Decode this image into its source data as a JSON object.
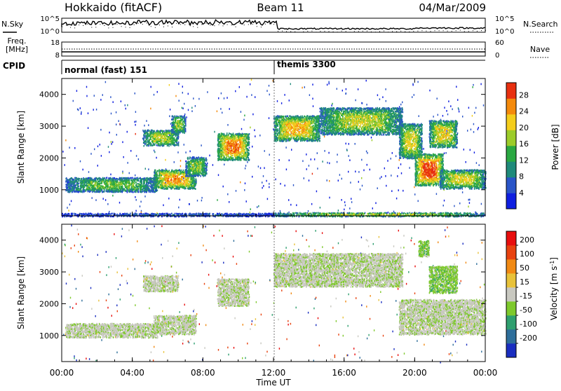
{
  "header": {
    "title": "Hokkaido (fitACF)",
    "beam": "Beam 11",
    "date": "04/Mar/2009"
  },
  "labels": {
    "nsky": "N.Sky",
    "nsearch": "N.Search",
    "freq_line1": "Freq.",
    "freq_line2": "[MHz]",
    "nave": "Nave",
    "cpid": "CPID",
    "slant_range": "Slant Range [km]",
    "time_axis": "Time UT",
    "power": "Power [dB]",
    "velocity": "Velocity [m s",
    "velocity_sup": "-1",
    "velocity_close": "]"
  },
  "noise_axes": {
    "left_top": "10^5",
    "left_bottom": "10^0",
    "right_top": "10^5",
    "right_bottom": "10^0"
  },
  "freq_axes": {
    "left_top": "18",
    "left_bottom": "8",
    "right_top": "60",
    "right_bottom": "0"
  },
  "cpid_segments": [
    {
      "label": "normal (fast) 151",
      "start_h": 0
    },
    {
      "label": "themis 3300",
      "start_h": 12
    }
  ],
  "chart_data": [
    {
      "type": "heatmap",
      "quantity": "Power",
      "xlabel": "Time UT",
      "ylabel": "Slant Range [km]",
      "xlim_hours": [
        0,
        24
      ],
      "ylim_km": [
        180,
        4500
      ],
      "x_ticks": [
        "00:00",
        "04:00",
        "08:00",
        "12:00",
        "16:00",
        "20:00",
        "00:00"
      ],
      "y_ticks": [
        1000,
        2000,
        3000,
        4000
      ],
      "colorbar_label": "Power [dB]",
      "colorbar_ticks": [
        4,
        8,
        12,
        16,
        20,
        24,
        28
      ],
      "colorbar_range": [
        0,
        31
      ],
      "colors": [
        "#0f1fe0",
        "#2a55c8",
        "#1f8a7a",
        "#2aa842",
        "#9ccc2a",
        "#f4cd1c",
        "#f48a0c",
        "#e83010"
      ],
      "regions": [
        {
          "t0": 0.2,
          "t1": 5.4,
          "r0": 950,
          "r1": 1400,
          "level": 0.45
        },
        {
          "t0": 5.2,
          "t1": 7.6,
          "r0": 1050,
          "r1": 1650,
          "level": 0.75
        },
        {
          "t0": 7.0,
          "t1": 8.2,
          "r0": 1450,
          "r1": 2050,
          "level": 0.5
        },
        {
          "t0": 4.6,
          "t1": 6.6,
          "r0": 2400,
          "r1": 2900,
          "level": 0.55
        },
        {
          "t0": 6.2,
          "t1": 7.0,
          "r0": 2800,
          "r1": 3350,
          "level": 0.5
        },
        {
          "t0": 8.8,
          "t1": 10.6,
          "r0": 1950,
          "r1": 2800,
          "level": 0.8
        },
        {
          "t0": 12.0,
          "t1": 14.6,
          "r0": 2550,
          "r1": 3350,
          "level": 0.7
        },
        {
          "t0": 14.6,
          "t1": 19.3,
          "r0": 2750,
          "r1": 3600,
          "level": 0.55
        },
        {
          "t0": 19.1,
          "t1": 20.4,
          "r0": 2000,
          "r1": 3100,
          "level": 0.6
        },
        {
          "t0": 20.0,
          "t1": 21.6,
          "r0": 1150,
          "r1": 2150,
          "level": 0.9
        },
        {
          "t0": 21.4,
          "t1": 24.0,
          "r0": 1050,
          "r1": 1650,
          "level": 0.6
        },
        {
          "t0": 20.8,
          "t1": 22.4,
          "r0": 2350,
          "r1": 3200,
          "level": 0.65
        },
        {
          "t0": 12.0,
          "t1": 24.0,
          "r0": 180,
          "r1": 300,
          "level": 0.55
        },
        {
          "t0": 0.0,
          "t1": 12.0,
          "r0": 180,
          "r1": 280,
          "level": 0.15
        }
      ]
    },
    {
      "type": "heatmap",
      "quantity": "Velocity",
      "xlabel": "Time UT",
      "ylabel": "Slant Range [km]",
      "xlim_hours": [
        0,
        24
      ],
      "ylim_km": [
        180,
        4500
      ],
      "x_ticks": [
        "00:00",
        "04:00",
        "08:00",
        "12:00",
        "16:00",
        "20:00",
        "00:00"
      ],
      "y_ticks": [
        1000,
        2000,
        3000,
        4000
      ],
      "colorbar_label": "Velocity [m s-1]",
      "colorbar_ticks": [
        "200",
        "100",
        "50",
        "15",
        "-15",
        "-50",
        "-100",
        "-200"
      ],
      "colors": [
        "#1a2ec0",
        "#2e6e9a",
        "#2f9f6f",
        "#7ec92c",
        "#c8c8c0",
        "#e8c23a",
        "#f18a14",
        "#e8420f",
        "#e80e0e"
      ],
      "regions": [
        {
          "t0": 0.2,
          "t1": 5.4,
          "r0": 950,
          "r1": 1400,
          "level": 0.4
        },
        {
          "t0": 5.2,
          "t1": 7.6,
          "r0": 1050,
          "r1": 1650,
          "level": 0.4
        },
        {
          "t0": 4.6,
          "t1": 6.6,
          "r0": 2400,
          "r1": 2900,
          "level": 0.4
        },
        {
          "t0": 8.8,
          "t1": 10.6,
          "r0": 1950,
          "r1": 2800,
          "level": 0.4
        },
        {
          "t0": 12.0,
          "t1": 19.3,
          "r0": 2550,
          "r1": 3600,
          "level": 0.4
        },
        {
          "t0": 19.1,
          "t1": 24.0,
          "r0": 1050,
          "r1": 2150,
          "level": 0.4
        },
        {
          "t0": 20.8,
          "t1": 22.4,
          "r0": 2350,
          "r1": 3200,
          "level": 0.3
        },
        {
          "t0": 20.2,
          "t1": 20.8,
          "r0": 3500,
          "r1": 4000,
          "level": 0.3
        }
      ]
    }
  ]
}
